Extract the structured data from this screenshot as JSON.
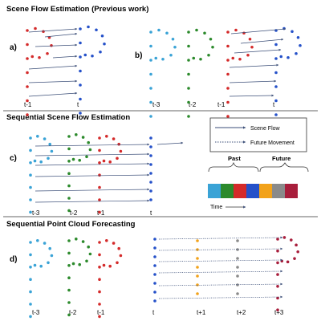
{
  "sections": [
    {
      "title": "Scene Flow Estimation (Previous work)"
    },
    {
      "title": "Sequential Scene Flow Estimation"
    },
    {
      "title": "Sequential Point Cloud Forecasting"
    }
  ],
  "panels": {
    "a": {
      "label": "a)",
      "times": [
        "t-1",
        "t"
      ]
    },
    "b": {
      "label": "b)",
      "times": [
        "t-3",
        "t-2",
        "t-1",
        "t"
      ]
    },
    "c": {
      "label": "c)",
      "times": [
        "t-3",
        "t-2",
        "t-1",
        "t"
      ]
    },
    "d": {
      "label": "d)",
      "left_times": [
        "t-3",
        "t-2",
        "t-1"
      ],
      "right_times": [
        "t",
        "t+1",
        "t+2",
        "t+3"
      ]
    }
  },
  "legend": {
    "scene_flow": "Scene Flow",
    "future_movement": "Future Movement",
    "past": "Past",
    "future": "Future",
    "time": "Time"
  },
  "colors": {
    "t-3": "#3aa3d6",
    "t-2": "#2c8a2c",
    "t-1": "#d42a2a",
    "t": "#2551c9",
    "t+1": "#f2a21a",
    "t+2": "#8a8a8a",
    "t+3": "#a81e3c",
    "arrow": "#3b4e78",
    "divider": "#333333"
  }
}
